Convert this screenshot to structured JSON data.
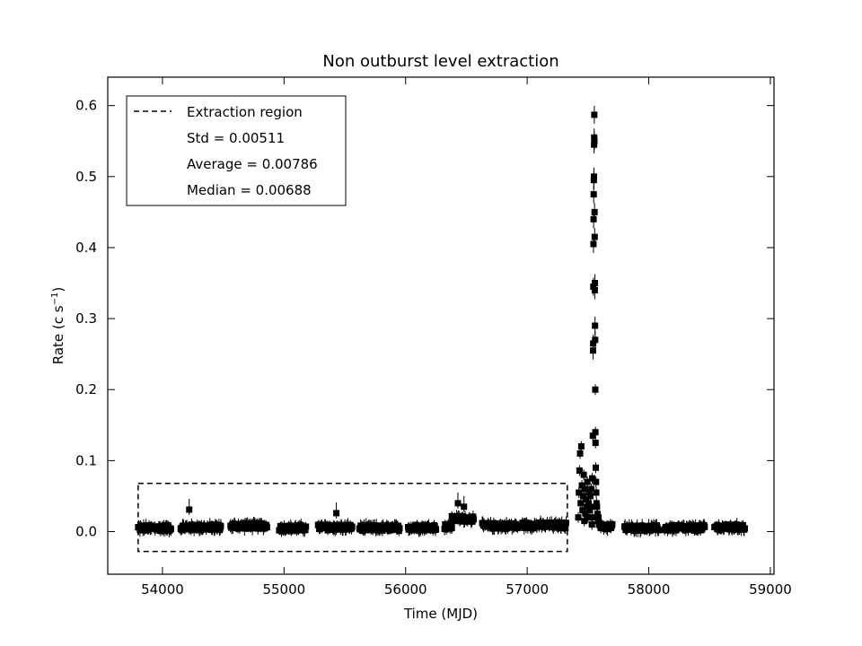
{
  "chart_data": {
    "type": "scatter",
    "title": "Non outburst level extraction",
    "xlabel": "Time (MJD)",
    "ylabel_main": "Rate (c s",
    "ylabel_sup": "−1",
    "ylabel_close": ")",
    "xlim": [
      53550,
      59030
    ],
    "ylim": [
      -0.06,
      0.64
    ],
    "xticks": [
      54000,
      55000,
      56000,
      57000,
      58000,
      59000
    ],
    "xtick_labels": [
      "54000",
      "55000",
      "56000",
      "57000",
      "58000",
      "59000"
    ],
    "yticks": [
      0.0,
      0.1,
      0.2,
      0.3,
      0.4,
      0.5,
      0.6
    ],
    "ytick_labels": [
      "0.0",
      "0.1",
      "0.2",
      "0.3",
      "0.4",
      "0.5",
      "0.6"
    ],
    "grid": false,
    "legend": {
      "placement": "top-left",
      "entries": [
        "Extraction region",
        "Std = 0.00511",
        "Average = 0.00786",
        "Median = 0.00688"
      ]
    },
    "extraction_region": {
      "x": [
        53800,
        57330
      ],
      "y": [
        -0.028,
        0.068
      ]
    },
    "quiescent_segments": [
      {
        "x": [
          53800,
          54070
        ],
        "level": 0.005
      },
      {
        "x": [
          54150,
          54480
        ],
        "level": 0.006
      },
      {
        "x": [
          54560,
          54860
        ],
        "level": 0.008
      },
      {
        "x": [
          54960,
          55180
        ],
        "level": 0.005
      },
      {
        "x": [
          55280,
          55560
        ],
        "level": 0.006
      },
      {
        "x": [
          55620,
          55950
        ],
        "level": 0.005
      },
      {
        "x": [
          56020,
          56250
        ],
        "level": 0.006
      },
      {
        "x": [
          56320,
          56380
        ],
        "level": 0.007
      },
      {
        "x": [
          56380,
          56560
        ],
        "level": 0.018
      },
      {
        "x": [
          56630,
          56920
        ],
        "level": 0.008
      },
      {
        "x": [
          56960,
          57320
        ],
        "level": 0.009
      },
      {
        "x": [
          57600,
          57700
        ],
        "level": 0.007
      },
      {
        "x": [
          57800,
          58080
        ],
        "level": 0.005
      },
      {
        "x": [
          58130,
          58460
        ],
        "level": 0.005
      },
      {
        "x": [
          58540,
          58790
        ],
        "level": 0.006
      }
    ],
    "notable_points": [
      {
        "x": 54220,
        "y": 0.031
      },
      {
        "x": 55430,
        "y": 0.026
      },
      {
        "x": 56430,
        "y": 0.04
      },
      {
        "x": 56480,
        "y": 0.035
      }
    ],
    "outburst_points": [
      {
        "x": 57420,
        "y": 0.02
      },
      {
        "x": 57425,
        "y": 0.055
      },
      {
        "x": 57430,
        "y": 0.086
      },
      {
        "x": 57435,
        "y": 0.11
      },
      {
        "x": 57440,
        "y": 0.04
      },
      {
        "x": 57445,
        "y": 0.12
      },
      {
        "x": 57450,
        "y": 0.065
      },
      {
        "x": 57455,
        "y": 0.03
      },
      {
        "x": 57460,
        "y": 0.05
      },
      {
        "x": 57465,
        "y": 0.08
      },
      {
        "x": 57470,
        "y": 0.015
      },
      {
        "x": 57475,
        "y": 0.06
      },
      {
        "x": 57480,
        "y": 0.025
      },
      {
        "x": 57485,
        "y": 0.045
      },
      {
        "x": 57490,
        "y": 0.035
      },
      {
        "x": 57495,
        "y": 0.07
      },
      {
        "x": 57500,
        "y": 0.02
      },
      {
        "x": 57505,
        "y": 0.04
      },
      {
        "x": 57510,
        "y": 0.055
      },
      {
        "x": 57515,
        "y": 0.03
      },
      {
        "x": 57520,
        "y": 0.05
      },
      {
        "x": 57525,
        "y": 0.035
      },
      {
        "x": 57528,
        "y": 0.06
      },
      {
        "x": 57532,
        "y": 0.01
      },
      {
        "x": 57535,
        "y": 0.075
      },
      {
        "x": 57538,
        "y": 0.02
      },
      {
        "x": 57540,
        "y": 0.135
      },
      {
        "x": 57542,
        "y": 0.255
      },
      {
        "x": 57543,
        "y": 0.265
      },
      {
        "x": 57544,
        "y": 0.345
      },
      {
        "x": 57545,
        "y": 0.405
      },
      {
        "x": 57546,
        "y": 0.44
      },
      {
        "x": 57547,
        "y": 0.475
      },
      {
        "x": 57548,
        "y": 0.495
      },
      {
        "x": 57549,
        "y": 0.5
      },
      {
        "x": 57550,
        "y": 0.545
      },
      {
        "x": 57551,
        "y": 0.555
      },
      {
        "x": 57552,
        "y": 0.587
      },
      {
        "x": 57553,
        "y": 0.55
      },
      {
        "x": 57554,
        "y": 0.45
      },
      {
        "x": 57555,
        "y": 0.415
      },
      {
        "x": 57556,
        "y": 0.34
      },
      {
        "x": 57557,
        "y": 0.35
      },
      {
        "x": 57558,
        "y": 0.29
      },
      {
        "x": 57559,
        "y": 0.27
      },
      {
        "x": 57560,
        "y": 0.2
      },
      {
        "x": 57561,
        "y": 0.14
      },
      {
        "x": 57562,
        "y": 0.125
      },
      {
        "x": 57564,
        "y": 0.09
      },
      {
        "x": 57566,
        "y": 0.07
      },
      {
        "x": 57568,
        "y": 0.055
      },
      {
        "x": 57570,
        "y": 0.04
      },
      {
        "x": 57574,
        "y": 0.035
      },
      {
        "x": 57578,
        "y": 0.025
      },
      {
        "x": 57582,
        "y": 0.015
      },
      {
        "x": 57586,
        "y": 0.02
      },
      {
        "x": 57590,
        "y": 0.01
      },
      {
        "x": 57595,
        "y": 0.012
      }
    ]
  }
}
